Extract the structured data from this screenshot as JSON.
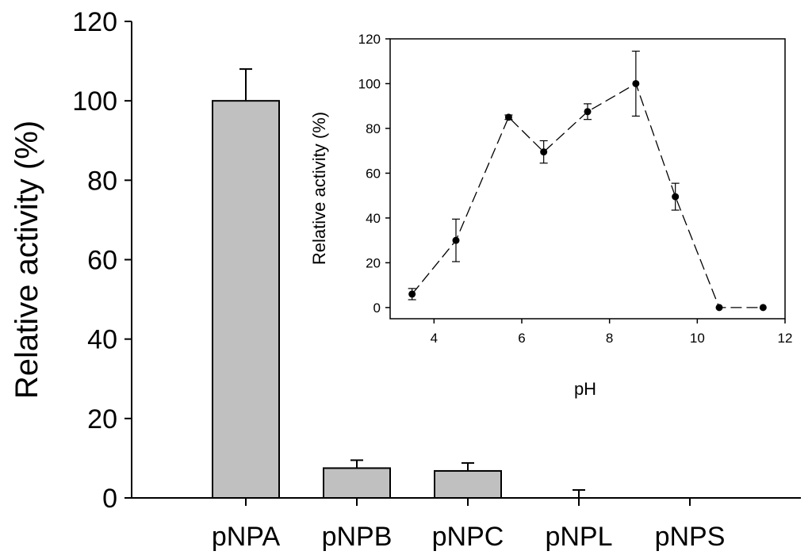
{
  "chart_data": [
    {
      "type": "bar",
      "title": "",
      "xlabel": "",
      "ylabel": "Relative activity (%)",
      "ylim": [
        0,
        120
      ],
      "yticks": [
        0,
        20,
        40,
        60,
        80,
        100,
        120
      ],
      "categories": [
        "pNPA",
        "pNPB",
        "pNPC",
        "pNPL",
        "pNPS"
      ],
      "values": [
        100,
        7.5,
        6.8,
        0,
        0
      ],
      "errors": [
        8,
        2,
        2,
        2,
        0
      ],
      "bar_color": "#c0c0c0"
    },
    {
      "type": "line",
      "title": "",
      "xlabel": "pH",
      "ylabel": "Relative activity (%)",
      "xlim": [
        3,
        12
      ],
      "ylim": [
        -5,
        120
      ],
      "xticks": [
        4,
        6,
        8,
        10,
        12
      ],
      "yticks": [
        0,
        20,
        40,
        60,
        80,
        100,
        120
      ],
      "x": [
        3.5,
        4.5,
        5.7,
        6.5,
        7.5,
        8.6,
        9.5,
        10.5,
        11.5
      ],
      "y": [
        6,
        30,
        85,
        69.5,
        87.5,
        100,
        49.5,
        0,
        0
      ],
      "errors": [
        2.5,
        9.5,
        1,
        5,
        3.5,
        14.5,
        6,
        0,
        0
      ],
      "line_style": "dashed",
      "marker": "filled-circle"
    }
  ]
}
